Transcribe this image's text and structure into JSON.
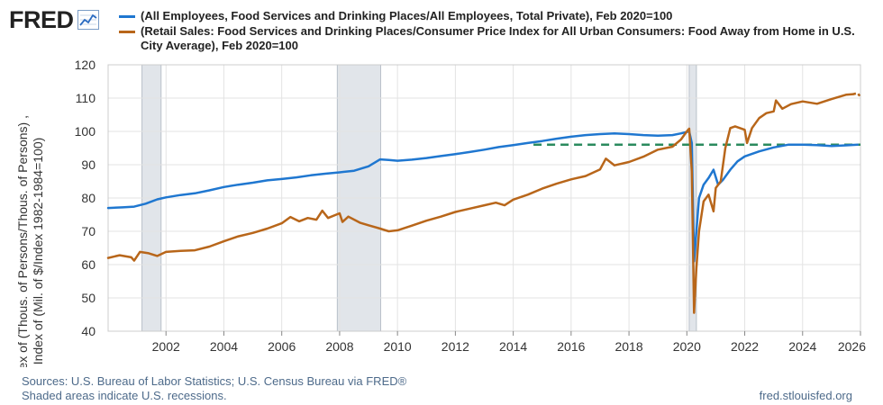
{
  "header": {
    "logo_text": "FRED",
    "logo_icon": "trend-line-icon"
  },
  "footer": {
    "sources": "Sources: U.S. Bureau of Labor Statistics; U.S. Census Bureau via FRED®",
    "shaded_note": "Shaded areas indicate U.S. recessions.",
    "site": "fred.stlouisfed.org"
  },
  "chart_data": {
    "type": "line",
    "title": "",
    "xlabel": "",
    "ylabel_line1": "Index of (Thous. of Persons/Thous. of Persons) ,",
    "ylabel_line2": "Index of (Mil. of $/Index 1982-1984=100)",
    "xlim": [
      2000.0,
      2026.0
    ],
    "ylim": [
      40,
      120
    ],
    "x_ticks": [
      2002,
      2004,
      2006,
      2008,
      2010,
      2012,
      2014,
      2016,
      2018,
      2020,
      2022,
      2024,
      2026
    ],
    "y_ticks": [
      40,
      50,
      60,
      70,
      80,
      90,
      100,
      110,
      120
    ],
    "grid": true,
    "legend_position": "top",
    "reference_line": {
      "y": 96.0,
      "from_x": 2014.7,
      "to_x": 2026.0,
      "style": "dashed",
      "color": "#2a8a5e"
    },
    "recessions": [
      {
        "start": 2001.17,
        "end": 2001.83
      },
      {
        "start": 2007.92,
        "end": 2009.42
      },
      {
        "start": 2020.08,
        "end": 2020.33
      }
    ],
    "series": [
      {
        "name": "(All Employees, Food Services and Drinking Places/All Employees, Total Private), Feb 2020=100",
        "color": "#1f77d0",
        "points": [
          [
            2000.0,
            77.0
          ],
          [
            2000.5,
            77.2
          ],
          [
            2000.9,
            77.4
          ],
          [
            2001.3,
            78.3
          ],
          [
            2001.7,
            79.6
          ],
          [
            2002.0,
            80.2
          ],
          [
            2002.5,
            80.9
          ],
          [
            2003.0,
            81.4
          ],
          [
            2003.5,
            82.3
          ],
          [
            2004.0,
            83.3
          ],
          [
            2004.5,
            84.0
          ],
          [
            2005.0,
            84.6
          ],
          [
            2005.5,
            85.3
          ],
          [
            2006.0,
            85.7
          ],
          [
            2006.5,
            86.2
          ],
          [
            2007.0,
            86.8
          ],
          [
            2007.5,
            87.3
          ],
          [
            2008.0,
            87.7
          ],
          [
            2008.5,
            88.2
          ],
          [
            2009.0,
            89.5
          ],
          [
            2009.4,
            91.6
          ],
          [
            2009.7,
            91.4
          ],
          [
            2010.0,
            91.2
          ],
          [
            2010.5,
            91.5
          ],
          [
            2011.0,
            92.0
          ],
          [
            2011.5,
            92.6
          ],
          [
            2012.0,
            93.2
          ],
          [
            2012.5,
            93.8
          ],
          [
            2013.0,
            94.5
          ],
          [
            2013.5,
            95.3
          ],
          [
            2014.0,
            95.9
          ],
          [
            2014.5,
            96.5
          ],
          [
            2015.0,
            97.1
          ],
          [
            2015.5,
            97.8
          ],
          [
            2016.0,
            98.4
          ],
          [
            2016.5,
            98.9
          ],
          [
            2017.0,
            99.2
          ],
          [
            2017.5,
            99.4
          ],
          [
            2018.0,
            99.2
          ],
          [
            2018.5,
            98.9
          ],
          [
            2019.0,
            98.7
          ],
          [
            2019.5,
            98.9
          ],
          [
            2019.8,
            99.4
          ],
          [
            2020.08,
            100.0
          ],
          [
            2020.17,
            96.5
          ],
          [
            2020.25,
            61.0
          ],
          [
            2020.33,
            70.0
          ],
          [
            2020.42,
            80.0
          ],
          [
            2020.58,
            84.0
          ],
          [
            2020.75,
            86.0
          ],
          [
            2020.92,
            88.5
          ],
          [
            2021.08,
            84.0
          ],
          [
            2021.25,
            85.5
          ],
          [
            2021.5,
            88.5
          ],
          [
            2021.75,
            91.0
          ],
          [
            2022.0,
            92.5
          ],
          [
            2022.5,
            94.0
          ],
          [
            2023.0,
            95.2
          ],
          [
            2023.5,
            96.0
          ],
          [
            2024.0,
            96.0
          ],
          [
            2024.5,
            95.9
          ],
          [
            2025.0,
            95.6
          ],
          [
            2025.5,
            95.8
          ],
          [
            2025.9,
            96.0
          ]
        ]
      },
      {
        "name": "(Retail Sales: Food Services and Drinking Places/Consumer Price Index for All Urban Consumers: Food Away from Home in U.S. City Average), Feb 2020=100",
        "color": "#b8661a",
        "points": [
          [
            2000.0,
            62.0
          ],
          [
            2000.4,
            62.8
          ],
          [
            2000.8,
            62.2
          ],
          [
            2000.9,
            61.2
          ],
          [
            2001.1,
            63.8
          ],
          [
            2001.4,
            63.4
          ],
          [
            2001.7,
            62.6
          ],
          [
            2002.0,
            63.8
          ],
          [
            2002.5,
            64.1
          ],
          [
            2003.0,
            64.3
          ],
          [
            2003.5,
            65.4
          ],
          [
            2004.0,
            67.0
          ],
          [
            2004.5,
            68.5
          ],
          [
            2005.0,
            69.5
          ],
          [
            2005.5,
            70.8
          ],
          [
            2006.0,
            72.4
          ],
          [
            2006.3,
            74.3
          ],
          [
            2006.6,
            73.0
          ],
          [
            2006.9,
            74.0
          ],
          [
            2007.2,
            73.5
          ],
          [
            2007.4,
            76.2
          ],
          [
            2007.6,
            74.0
          ],
          [
            2008.0,
            75.4
          ],
          [
            2008.1,
            72.8
          ],
          [
            2008.3,
            74.4
          ],
          [
            2008.7,
            72.6
          ],
          [
            2009.0,
            71.8
          ],
          [
            2009.4,
            70.8
          ],
          [
            2009.7,
            70.0
          ],
          [
            2010.0,
            70.3
          ],
          [
            2010.5,
            71.7
          ],
          [
            2011.0,
            73.2
          ],
          [
            2011.5,
            74.4
          ],
          [
            2012.0,
            75.8
          ],
          [
            2012.5,
            76.8
          ],
          [
            2013.0,
            77.8
          ],
          [
            2013.4,
            78.6
          ],
          [
            2013.7,
            77.8
          ],
          [
            2014.0,
            79.5
          ],
          [
            2014.5,
            81.0
          ],
          [
            2015.0,
            82.8
          ],
          [
            2015.5,
            84.3
          ],
          [
            2016.0,
            85.6
          ],
          [
            2016.5,
            86.6
          ],
          [
            2017.0,
            88.6
          ],
          [
            2017.2,
            91.8
          ],
          [
            2017.5,
            89.8
          ],
          [
            2018.0,
            90.8
          ],
          [
            2018.5,
            92.4
          ],
          [
            2019.0,
            94.5
          ],
          [
            2019.5,
            95.4
          ],
          [
            2019.8,
            97.6
          ],
          [
            2020.0,
            100.0
          ],
          [
            2020.08,
            100.8
          ],
          [
            2020.17,
            88.0
          ],
          [
            2020.25,
            45.5
          ],
          [
            2020.33,
            59.0
          ],
          [
            2020.42,
            70.0
          ],
          [
            2020.58,
            79.0
          ],
          [
            2020.75,
            81.0
          ],
          [
            2020.92,
            76.0
          ],
          [
            2021.0,
            83.0
          ],
          [
            2021.17,
            85.0
          ],
          [
            2021.33,
            95.0
          ],
          [
            2021.5,
            101.0
          ],
          [
            2021.67,
            101.5
          ],
          [
            2022.0,
            100.5
          ],
          [
            2022.08,
            96.5
          ],
          [
            2022.25,
            101.0
          ],
          [
            2022.5,
            104.0
          ],
          [
            2022.75,
            105.5
          ],
          [
            2023.0,
            106.0
          ],
          [
            2023.08,
            109.3
          ],
          [
            2023.3,
            106.8
          ],
          [
            2023.6,
            108.2
          ],
          [
            2024.0,
            109.0
          ],
          [
            2024.5,
            108.3
          ],
          [
            2025.0,
            109.7
          ],
          [
            2025.5,
            111.0
          ],
          [
            2025.75,
            111.2
          ]
        ],
        "projection": [
          [
            2025.75,
            111.2
          ],
          [
            2025.9,
            111.5
          ],
          [
            2026.0,
            110.3
          ]
        ]
      }
    ]
  }
}
